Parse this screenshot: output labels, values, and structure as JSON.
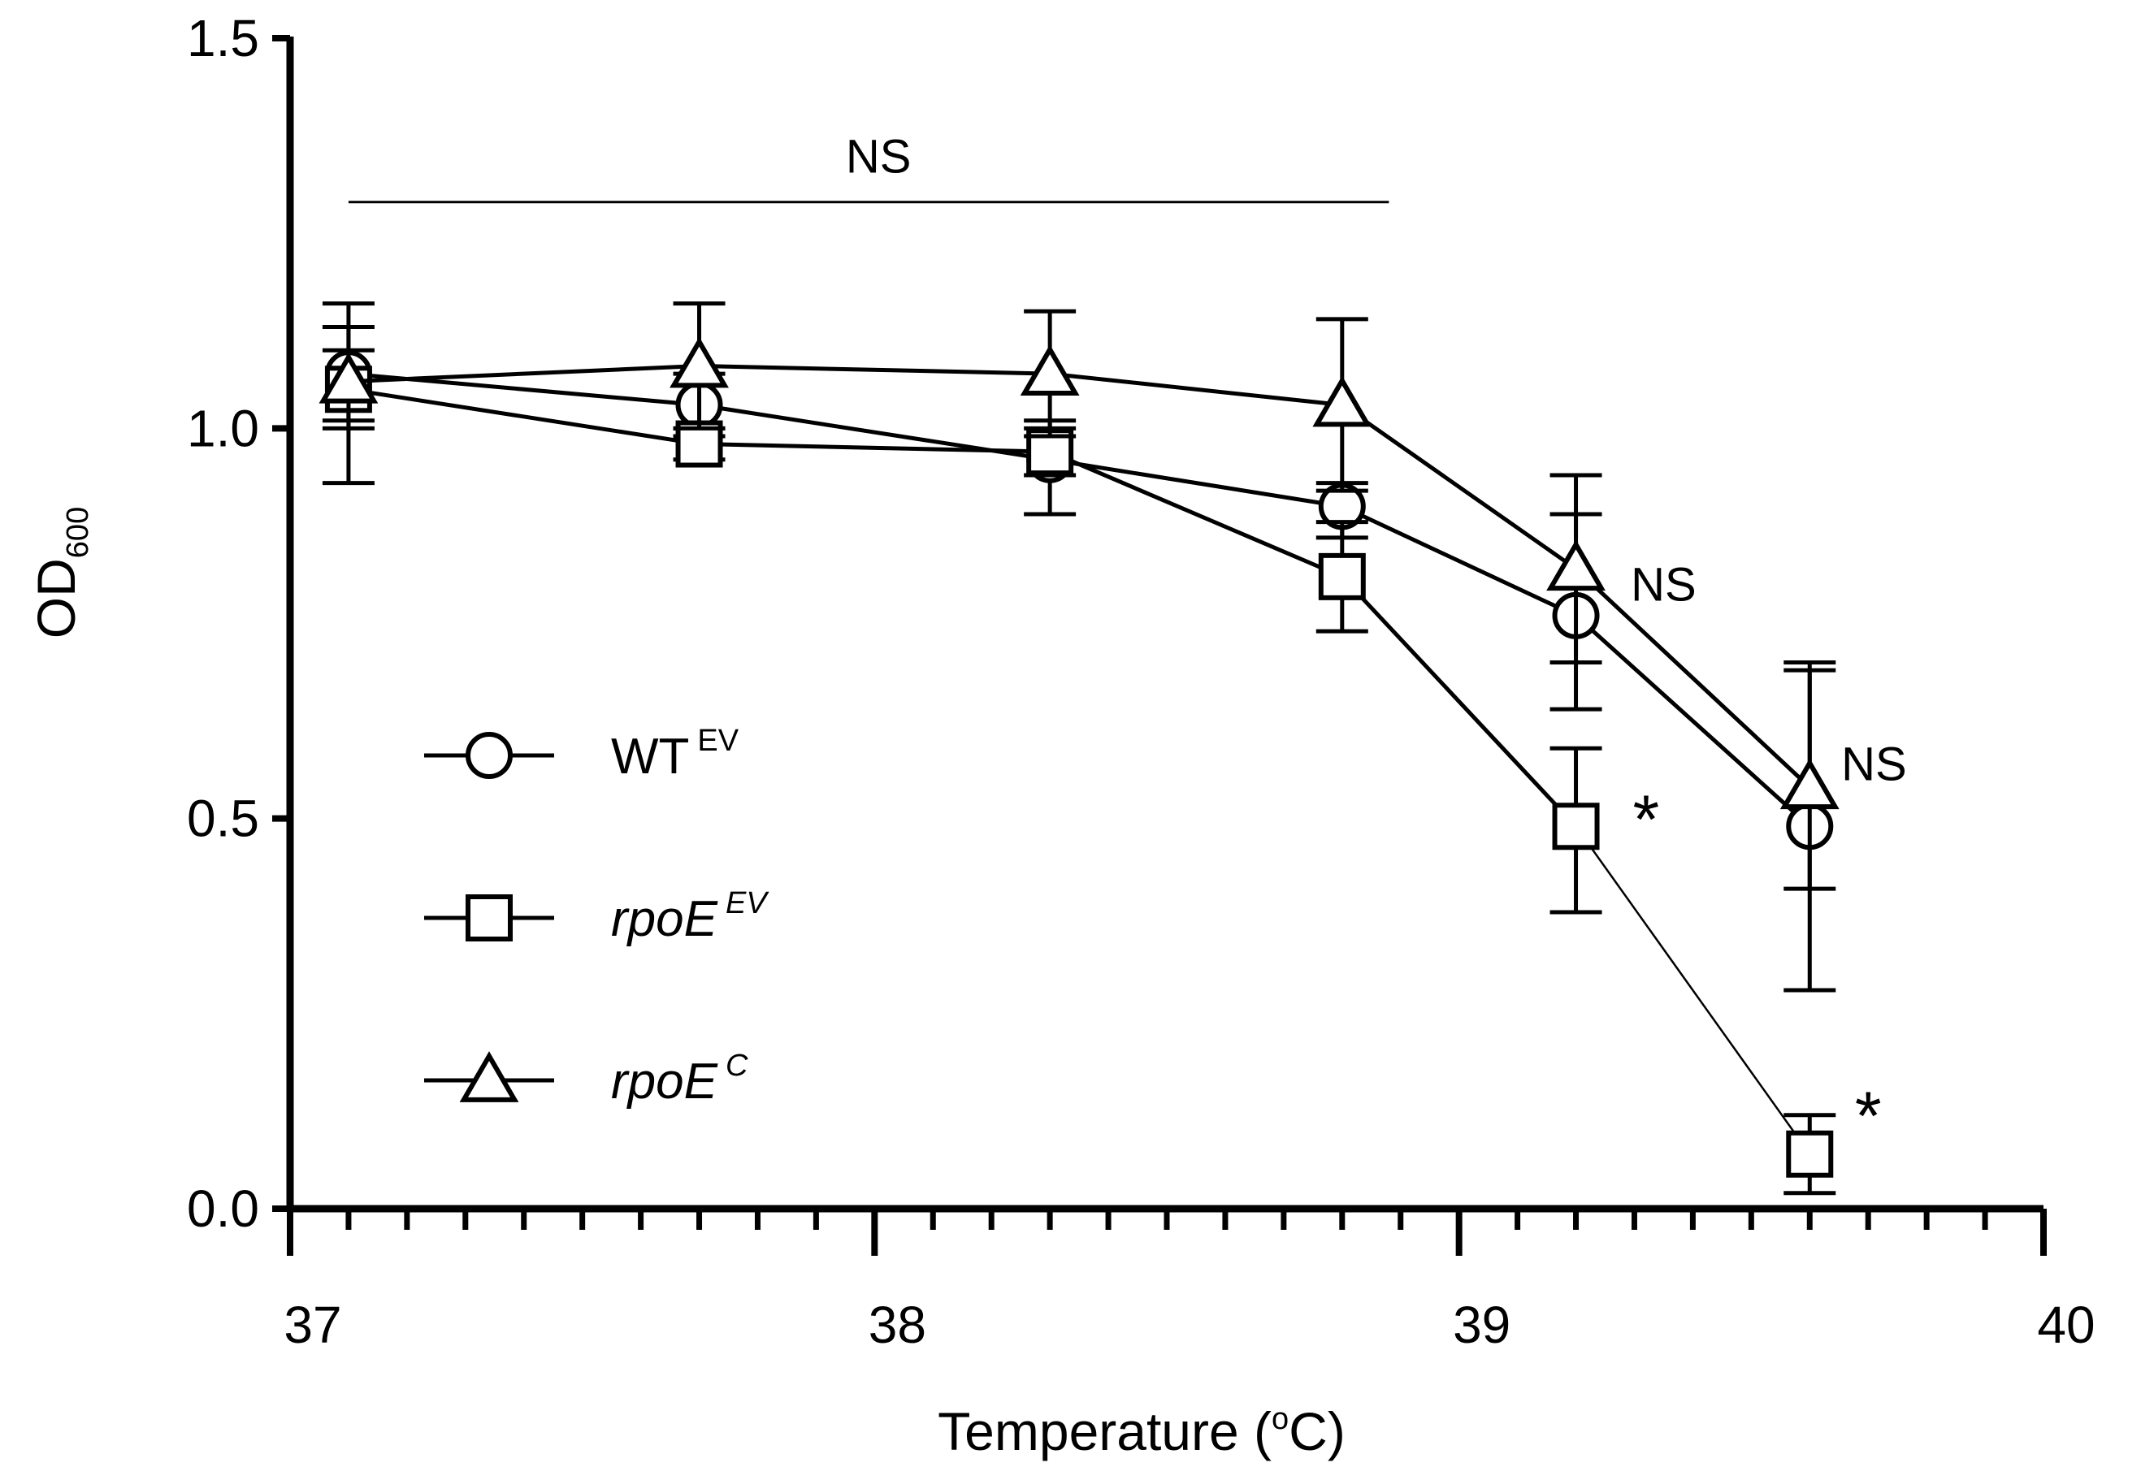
{
  "chart_data": {
    "type": "line",
    "xlabel": "Temperature",
    "xlabel_unit_prefix": "(",
    "xlabel_unit_sup": "o",
    "xlabel_unit_suffix": "C)",
    "ylabel": "OD",
    "ylabel_sub": "600",
    "xlim": [
      37,
      40
    ],
    "ylim": [
      0,
      1.5
    ],
    "x_ticks": [
      37,
      38,
      39,
      40
    ],
    "x_tick_labels": [
      "37",
      "38",
      "39",
      "40"
    ],
    "x_minor_step": 0.1,
    "y_ticks": [
      0,
      0.5,
      1.0,
      1.5
    ],
    "y_tick_labels": [
      "0.0",
      "0.5",
      "1.0",
      "1.5"
    ],
    "x": [
      37.1,
      37.7,
      38.3,
      38.8,
      39.2,
      39.6
    ],
    "series": [
      {
        "name": "WT",
        "sup": "EV",
        "italic": false,
        "marker": "circle",
        "values": [
          1.07,
          1.03,
          0.96,
          0.9,
          0.76,
          0.49
        ],
        "err_low": [
          1.01,
          0.99,
          0.89,
          0.86,
          0.64,
          0.28
        ],
        "err_high": [
          1.13,
          1.07,
          1.01,
          0.93,
          0.89,
          0.69
        ]
      },
      {
        "name": "rpoE",
        "sup": "EV",
        "italic": true,
        "marker": "square",
        "values": [
          1.05,
          0.98,
          0.97,
          0.81,
          0.49,
          0.07
        ],
        "err_low": [
          1.0,
          0.96,
          0.94,
          0.74,
          0.38,
          0.02
        ],
        "err_high": [
          1.1,
          1.0,
          1.0,
          0.88,
          0.59,
          0.12
        ]
      },
      {
        "name": "rpoE",
        "sup": "C",
        "italic": true,
        "marker": "triangle",
        "values": [
          1.06,
          1.08,
          1.07,
          1.03,
          0.82,
          0.54
        ],
        "err_low": [
          0.93,
          1.0,
          0.99,
          0.92,
          0.7,
          0.41
        ],
        "err_high": [
          1.16,
          1.16,
          1.15,
          1.14,
          0.94,
          0.7
        ]
      }
    ],
    "annotations": [
      {
        "text": "NS",
        "type": "bracket",
        "x_from": 37.1,
        "x_to": 38.88,
        "y": 1.29
      },
      {
        "text": "NS",
        "x": 39.35,
        "y": 0.8
      },
      {
        "text": "NS",
        "x": 39.71,
        "y": 0.57
      },
      {
        "text": "*",
        "x": 39.32,
        "y": 0.5
      },
      {
        "text": "*",
        "x": 39.7,
        "y": 0.12
      }
    ]
  }
}
